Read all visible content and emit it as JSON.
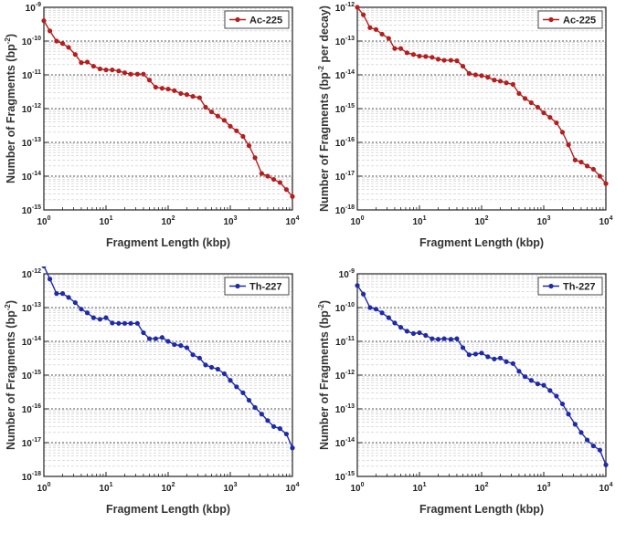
{
  "chart_data": [
    {
      "type": "line",
      "log_x": true,
      "log_y": true,
      "xlim": [
        1,
        10000
      ],
      "ylim_exp": [
        -15,
        -9
      ],
      "x_ticks": [
        "10^0",
        "10^1",
        "10^2",
        "10^3",
        "10^4"
      ],
      "y_ticks": [
        "10^-15",
        "10^-14",
        "10^-13",
        "10^-12",
        "10^-11",
        "10^-10",
        "10^-9"
      ],
      "xlabel": "Fragment Length (kbp)",
      "ylabel_base": "Number of Fragments (bp",
      "ylabel_sup": "-2",
      "ylabel_tail": ")",
      "legend": {
        "label": "Ac-225",
        "placement": "top-right"
      },
      "series": [
        {
          "name": "Ac-225",
          "color": "#b41e1e",
          "x": [
            1,
            1.25,
            1.6,
            2,
            2.5,
            3.2,
            4,
            5,
            6.3,
            8,
            10,
            12.6,
            16,
            20,
            25,
            32,
            40,
            50,
            63,
            80,
            100,
            126,
            160,
            200,
            250,
            320,
            400,
            500,
            630,
            800,
            1000,
            1260,
            1600,
            2000,
            2500,
            3200,
            4000,
            5000,
            6300,
            8000,
            10000
          ],
          "y": [
            4e-10,
            2e-10,
            1e-10,
            8.5e-11,
            6.5e-11,
            4e-11,
            2.3e-11,
            2.4e-11,
            1.8e-11,
            1.5e-11,
            1.4e-11,
            1.4e-11,
            1.3e-11,
            1.15e-11,
            1.05e-11,
            1.05e-11,
            1.05e-11,
            7e-12,
            4.3e-12,
            4e-12,
            3.8e-12,
            3.4e-12,
            2.8e-12,
            2.6e-12,
            2.3e-12,
            2.1e-12,
            1.1e-12,
            8e-13,
            6e-13,
            4.5e-13,
            3e-13,
            2.2e-13,
            1.5e-13,
            8e-14,
            3.5e-14,
            1.2e-14,
            1e-14,
            8e-15,
            6.5e-15,
            4e-15,
            2.5e-15
          ]
        }
      ]
    },
    {
      "type": "line",
      "log_x": true,
      "log_y": true,
      "xlim": [
        1,
        10000
      ],
      "ylim_exp": [
        -18,
        -12
      ],
      "x_ticks": [
        "10^0",
        "10^1",
        "10^2",
        "10^3",
        "10^4"
      ],
      "y_ticks": [
        "10^-18",
        "10^-17",
        "10^-16",
        "10^-15",
        "10^-14",
        "10^-13",
        "10^-12"
      ],
      "xlabel": "Fragment Length (kbp)",
      "ylabel_base": "Number of Fragments (bp",
      "ylabel_sup": "-2",
      "ylabel_tail": " per decay)",
      "legend": {
        "label": "Ac-225",
        "placement": "top-right"
      },
      "series": [
        {
          "name": "Ac-225",
          "color": "#b41e1e",
          "x": [
            1,
            1.25,
            1.6,
            2,
            2.5,
            3.2,
            4,
            5,
            6.3,
            8,
            10,
            12.6,
            16,
            20,
            25,
            32,
            40,
            50,
            63,
            80,
            100,
            126,
            160,
            200,
            250,
            320,
            400,
            500,
            630,
            800,
            1000,
            1260,
            1600,
            2000,
            2500,
            3200,
            4000,
            5000,
            6300,
            8000,
            10000
          ],
          "y": [
            1e-12,
            6e-13,
            2.5e-13,
            2.2e-13,
            1.6e-13,
            1.2e-13,
            6e-14,
            6e-14,
            4.5e-14,
            4e-14,
            3.6e-14,
            3.5e-14,
            3.3e-14,
            2.9e-14,
            2.7e-14,
            2.7e-14,
            2.6e-14,
            1.8e-14,
            1.1e-14,
            1e-14,
            9.5e-15,
            8.5e-15,
            7e-15,
            6.5e-15,
            5.8e-15,
            5.2e-15,
            2.8e-15,
            2e-15,
            1.5e-15,
            1.1e-15,
            7.5e-16,
            5.5e-16,
            3.8e-16,
            2e-16,
            8.5e-17,
            3e-17,
            2.6e-17,
            2e-17,
            1.6e-17,
            1e-17,
            6e-18
          ]
        }
      ]
    },
    {
      "type": "line",
      "log_x": true,
      "log_y": true,
      "xlim": [
        1,
        10000
      ],
      "ylim_exp": [
        -18,
        -12
      ],
      "x_ticks": [
        "10^0",
        "10^1",
        "10^2",
        "10^3",
        "10^4"
      ],
      "y_ticks": [
        "10^-18",
        "10^-17",
        "10^-16",
        "10^-15",
        "10^-14",
        "10^-13",
        "10^-12"
      ],
      "xlabel": "Fragment Length (kbp)",
      "ylabel_base": "Number of Fragments (bp",
      "ylabel_sup": "-2",
      "ylabel_tail": ")",
      "legend": {
        "label": "Th-227",
        "placement": "top-right"
      },
      "series": [
        {
          "name": "Th-227",
          "color": "#1f2aa8",
          "x": [
            1,
            1.25,
            1.6,
            2,
            2.5,
            3.2,
            4,
            5,
            6.3,
            8,
            10,
            12.6,
            16,
            20,
            25,
            32,
            40,
            50,
            63,
            80,
            100,
            126,
            160,
            200,
            250,
            320,
            400,
            500,
            630,
            800,
            1000,
            1260,
            1600,
            2000,
            2500,
            3200,
            4000,
            5000,
            6300,
            8000,
            10000
          ],
          "y": [
            1.7e-12,
            7e-13,
            2.6e-13,
            2.6e-13,
            2e-13,
            1.4e-13,
            9e-14,
            7e-14,
            5e-14,
            4.5e-14,
            5e-14,
            3.5e-14,
            3.4e-14,
            3.4e-14,
            3.4e-14,
            3.4e-14,
            1.8e-14,
            1.2e-14,
            1.2e-14,
            1.3e-14,
            1e-14,
            8e-15,
            7.5e-15,
            6.5e-15,
            4e-15,
            3.2e-15,
            2e-15,
            1.7e-15,
            1.5e-15,
            1.1e-15,
            7e-16,
            4.5e-16,
            3e-16,
            1.8e-16,
            1.1e-16,
            7e-17,
            4.5e-17,
            3e-17,
            2.6e-17,
            1.8e-17,
            7e-18
          ]
        }
      ]
    },
    {
      "type": "line",
      "log_x": true,
      "log_y": true,
      "xlim": [
        1,
        10000
      ],
      "ylim_exp": [
        -15,
        -9
      ],
      "x_ticks": [
        "10^0",
        "10^1",
        "10^2",
        "10^3",
        "10^4"
      ],
      "y_ticks": [
        "10^-15",
        "10^-14",
        "10^-13",
        "10^-12",
        "10^-11",
        "10^-10",
        "10^-9"
      ],
      "xlabel": "Fragment Length (kbp)",
      "ylabel_base": "Number of Fragments (bp",
      "ylabel_sup": "-2",
      "ylabel_tail": ")",
      "legend": {
        "label": "Th-227",
        "placement": "top-right"
      },
      "series": [
        {
          "name": "Th-227",
          "color": "#1f2aa8",
          "x": [
            1,
            1.25,
            1.6,
            2,
            2.5,
            3.2,
            4,
            5,
            6.3,
            8,
            10,
            12.6,
            16,
            20,
            25,
            32,
            40,
            50,
            63,
            80,
            100,
            126,
            160,
            200,
            250,
            320,
            400,
            500,
            630,
            800,
            1000,
            1260,
            1600,
            2000,
            2500,
            3200,
            4000,
            5000,
            6300,
            8000,
            10000
          ],
          "y": [
            4.5e-10,
            2.5e-10,
            1e-10,
            9e-11,
            7e-11,
            5e-11,
            3.5e-11,
            2.6e-11,
            2e-11,
            1.7e-11,
            1.8e-11,
            1.5e-11,
            1.2e-11,
            1.15e-11,
            1.2e-11,
            1.15e-11,
            1.2e-11,
            6.5e-12,
            4e-12,
            4.2e-12,
            4.5e-12,
            3.5e-12,
            3e-12,
            3.2e-12,
            2.5e-12,
            2.2e-12,
            1.3e-12,
            9e-13,
            7e-13,
            5.5e-13,
            5e-13,
            3.5e-13,
            2.4e-13,
            1.4e-13,
            7e-14,
            3.5e-14,
            2e-14,
            1.2e-14,
            8e-15,
            6e-15,
            2.2e-15
          ]
        }
      ]
    }
  ]
}
